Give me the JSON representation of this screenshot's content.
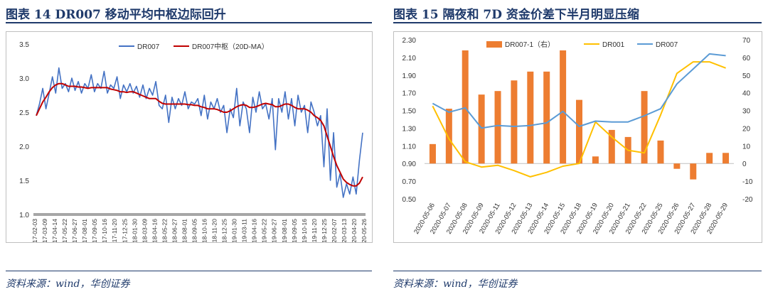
{
  "left": {
    "figure_title": "图表 14   DR007 移动平均中枢边际回升",
    "source": "资料来源：wind，华创证券",
    "chart_data": {
      "type": "line",
      "title": "",
      "legend_placement": "top-right",
      "series_names": [
        "DR007",
        "DR007中枢（20D-MA）"
      ],
      "series_colors": [
        "#4472c4",
        "#c00000"
      ],
      "y_ticks": [
        "3.5",
        "3.0",
        "2.5",
        "2.0",
        "1.5",
        "1.0"
      ],
      "ylim": [
        1.0,
        3.5
      ],
      "x_ticks": [
        "2017-02-03",
        "2017-03-09",
        "2017-04-14",
        "2017-05-22",
        "2017-06-27",
        "2017-08-01",
        "2017-09-05",
        "2017-10-16",
        "2017-11-20",
        "2017-12-25",
        "2018-01-30",
        "2018-03-09",
        "2018-04-16",
        "2018-05-22",
        "2018-06-27",
        "2018-08-01",
        "2018-09-05",
        "2018-10-16",
        "2018-11-20",
        "2018-12-25",
        "2019-01-30",
        "2019-03-11",
        "2019-04-16",
        "2019-05-22",
        "2019-06-27",
        "2019-08-01",
        "2019-09-05",
        "2019-10-16",
        "2019-11-20",
        "2019-12-25",
        "2020-02-07",
        "2020-03-13",
        "2020-04-20",
        "2020-05-26"
      ],
      "series": [
        {
          "name": "DR007",
          "values": [
            2.45,
            2.62,
            2.85,
            2.55,
            2.78,
            3.02,
            2.78,
            3.15,
            2.85,
            2.92,
            2.8,
            3.0,
            2.82,
            2.95,
            2.78,
            2.92,
            2.85,
            3.05,
            2.8,
            2.92,
            2.85,
            3.1,
            2.78,
            2.9,
            2.85,
            3.02,
            2.7,
            2.9,
            2.8,
            2.92,
            2.78,
            2.88,
            2.72,
            2.9,
            2.7,
            2.85,
            2.75,
            2.95,
            2.6,
            2.55,
            2.75,
            2.35,
            2.72,
            2.55,
            2.7,
            2.6,
            2.8,
            2.55,
            2.65,
            2.62,
            2.7,
            2.45,
            2.75,
            2.4,
            2.65,
            2.55,
            2.7,
            2.5,
            2.6,
            2.2,
            2.55,
            2.42,
            2.85,
            2.3,
            2.65,
            2.55,
            2.2,
            2.72,
            2.5,
            2.8,
            2.55,
            2.62,
            2.4,
            2.7,
            1.95,
            2.7,
            2.5,
            2.8,
            2.4,
            2.7,
            2.3,
            2.75,
            2.5,
            2.6,
            2.2,
            2.65,
            2.5,
            2.3,
            2.45,
            1.7,
            2.55,
            1.5,
            2.2,
            1.4,
            1.6,
            1.25,
            1.45,
            1.3,
            1.55,
            1.3,
            1.8,
            2.2
          ]
        },
        {
          "name": "DR007中枢（20D-MA）",
          "values": [
            2.45,
            2.55,
            2.65,
            2.72,
            2.8,
            2.86,
            2.9,
            2.92,
            2.92,
            2.9,
            2.88,
            2.88,
            2.88,
            2.87,
            2.87,
            2.86,
            2.85,
            2.86,
            2.86,
            2.86,
            2.86,
            2.86,
            2.86,
            2.84,
            2.83,
            2.82,
            2.8,
            2.8,
            2.79,
            2.8,
            2.8,
            2.78,
            2.76,
            2.74,
            2.72,
            2.7,
            2.7,
            2.7,
            2.66,
            2.63,
            2.62,
            2.62,
            2.62,
            2.62,
            2.62,
            2.62,
            2.62,
            2.61,
            2.61,
            2.6,
            2.6,
            2.58,
            2.57,
            2.55,
            2.55,
            2.55,
            2.54,
            2.52,
            2.5,
            2.5,
            2.52,
            2.55,
            2.58,
            2.6,
            2.61,
            2.6,
            2.57,
            2.57,
            2.58,
            2.6,
            2.62,
            2.63,
            2.62,
            2.61,
            2.58,
            2.58,
            2.6,
            2.62,
            2.62,
            2.6,
            2.57,
            2.55,
            2.55,
            2.55,
            2.53,
            2.5,
            2.45,
            2.42,
            2.38,
            2.3,
            2.15,
            2.0,
            1.85,
            1.72,
            1.62,
            1.52,
            1.47,
            1.44,
            1.42,
            1.42,
            1.46,
            1.55
          ]
        }
      ]
    }
  },
  "right": {
    "figure_title": "图表 15   隔夜和 7D 资金价差下半月明显压缩",
    "source": "资料来源：wind，华创证券",
    "chart_data": {
      "type": "bar",
      "title": "",
      "legend_placement": "top",
      "categories": [
        "2020-05-06",
        "2020-05-07",
        "2020-05-08",
        "2020-05-09",
        "2020-05-11",
        "2020-05-12",
        "2020-05-13",
        "2020-05-14",
        "2020-05-15",
        "2020-05-18",
        "2020-05-19",
        "2020-05-20",
        "2020-05-21",
        "2020-05-22",
        "2020-05-25",
        "2020-05-26",
        "2020-05-27",
        "2020-05-28",
        "2020-05-29"
      ],
      "left_axis_ticks": [
        "2.30",
        "2.10",
        "1.90",
        "1.70",
        "1.50",
        "1.30",
        "1.10",
        "0.90",
        "0.70",
        "0.50"
      ],
      "right_axis_ticks": [
        "70",
        "60",
        "50",
        "40",
        "30",
        "20",
        "10",
        "0",
        "-10",
        "-20"
      ],
      "ylim_left": [
        0.5,
        2.3
      ],
      "ylim_right": [
        -20,
        70
      ],
      "series": [
        {
          "name": "DR007-1（右）",
          "axis": "right",
          "type": "bar",
          "color": "#ed7d31",
          "values": [
            11,
            31,
            64,
            39,
            41,
            47,
            52,
            52,
            64,
            36,
            null,
            null,
            null,
            null,
            null,
            null,
            null,
            null,
            null
          ]
        },
        {
          "name": "DR001",
          "axis": "left",
          "type": "line",
          "color": "#ffc000",
          "values": [
            1.55,
            1.18,
            0.92,
            0.86,
            0.88,
            0.82,
            0.75,
            0.8,
            0.87,
            0.9,
            1.37,
            1.2,
            1.05,
            1.02,
            1.45,
            1.92,
            2.05,
            2.05,
            1.98
          ]
        },
        {
          "name": "DR007",
          "axis": "left",
          "type": "line",
          "color": "#5b9bd5",
          "values": [
            1.58,
            1.48,
            1.53,
            1.3,
            1.33,
            1.32,
            1.33,
            1.36,
            1.49,
            1.32,
            1.38,
            1.37,
            1.37,
            1.44,
            1.52,
            1.8,
            1.97,
            2.14,
            2.12
          ]
        }
      ],
      "bar_values_extra": [
        null,
        null,
        null,
        null,
        null,
        null,
        null,
        null,
        null,
        null,
        4,
        19,
        15,
        41,
        13,
        -3,
        -9,
        6,
        6
      ]
    }
  }
}
